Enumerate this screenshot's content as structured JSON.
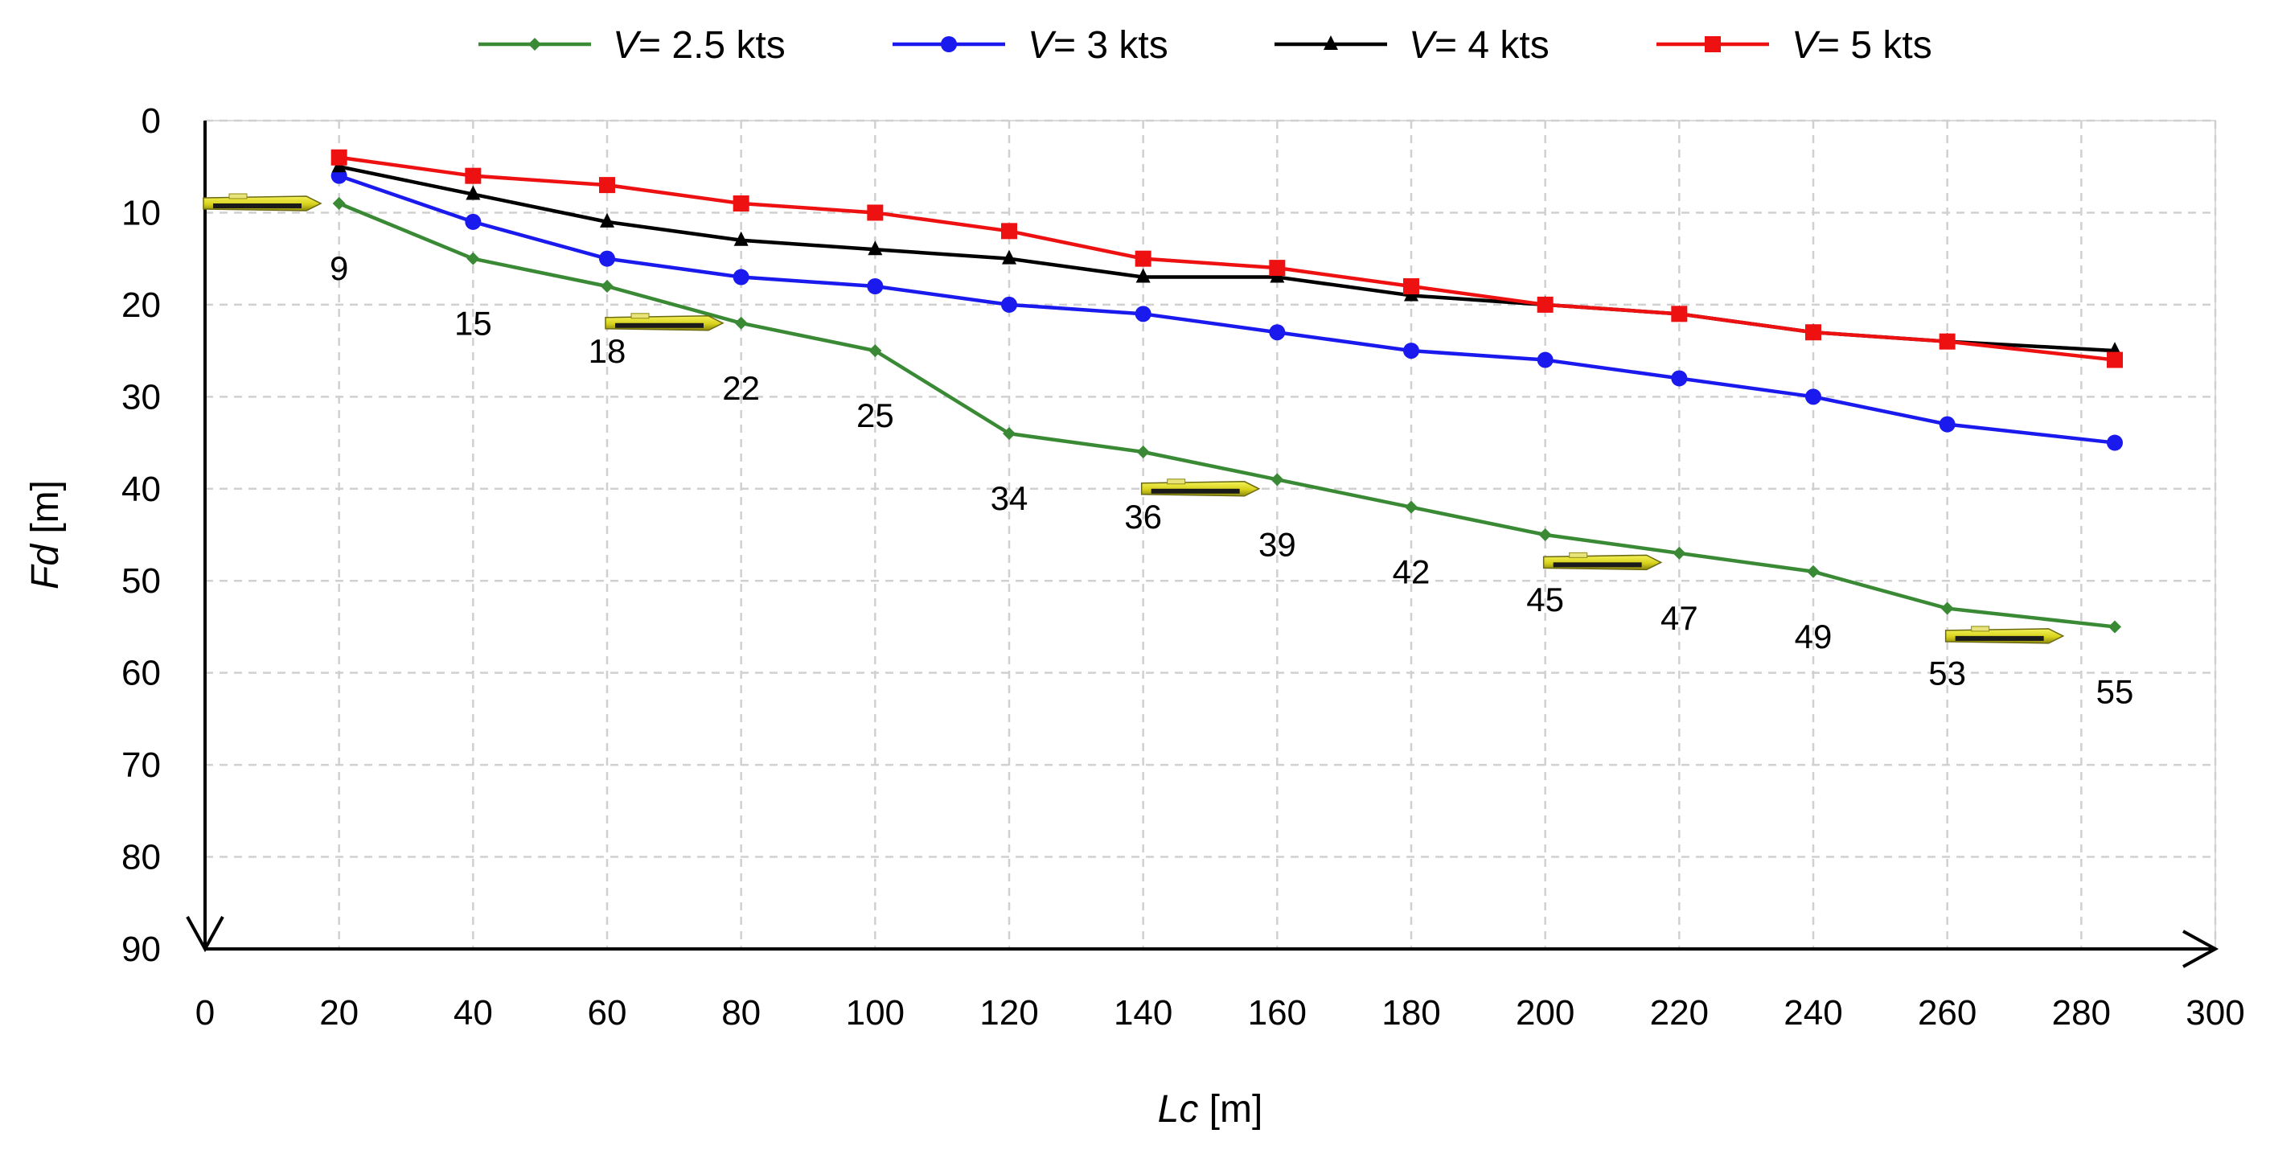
{
  "chart_data": {
    "type": "line",
    "title": "",
    "xlabel": {
      "var": "Lc",
      "unit": "[m]"
    },
    "ylabel": {
      "var": "Fd",
      "unit": "[m]"
    },
    "xlim": [
      0,
      300
    ],
    "ylim": [
      0,
      90
    ],
    "y_inverted": true,
    "grid": true,
    "legend_position": "top",
    "xticks": [
      0,
      20,
      40,
      60,
      80,
      100,
      120,
      140,
      160,
      180,
      200,
      220,
      240,
      260,
      280,
      300
    ],
    "yticks": [
      0,
      10,
      20,
      30,
      40,
      50,
      60,
      70,
      80,
      90
    ],
    "x": [
      20,
      40,
      60,
      80,
      100,
      120,
      140,
      160,
      180,
      200,
      220,
      240,
      260,
      285
    ],
    "series": [
      {
        "name": "V= 2.5 kts",
        "legend_var": "V",
        "legend_rest": "= 2.5 kts",
        "color": "#3a8a35",
        "marker": "diamond",
        "values": [
          9,
          15,
          18,
          22,
          25,
          34,
          36,
          39,
          42,
          45,
          47,
          49,
          53,
          55
        ]
      },
      {
        "name": "V= 3 kts",
        "legend_var": "V",
        "legend_rest": "= 3 kts",
        "color": "#1a1aee",
        "marker": "circle",
        "values": [
          6,
          11,
          15,
          17,
          18,
          20,
          21,
          23,
          25,
          26,
          28,
          30,
          33,
          35
        ]
      },
      {
        "name": "V= 4 kts",
        "legend_var": "V",
        "legend_rest": "= 4 kts",
        "color": "#000000",
        "marker": "triangle",
        "values": [
          5,
          8,
          11,
          13,
          14,
          15,
          17,
          17,
          19,
          20,
          21,
          23,
          24,
          25
        ]
      },
      {
        "name": "V= 5 kts",
        "legend_var": "V",
        "legend_rest": "= 5 kts",
        "color": "#ee1111",
        "marker": "square",
        "values": [
          4,
          6,
          7,
          9,
          10,
          12,
          15,
          16,
          18,
          20,
          21,
          23,
          24,
          26
        ]
      }
    ],
    "data_labels": {
      "series": "V= 2.5 kts",
      "values": [
        "9",
        "15",
        "18",
        "22",
        "25",
        "34",
        "36",
        "39",
        "42",
        "45",
        "47",
        "49",
        "53",
        "55"
      ]
    },
    "annotations": {
      "type": "ship-icon",
      "description": "yellow vessel markers along the 2.5 kts track",
      "at": [
        {
          "x": 0,
          "y": 9
        },
        {
          "x": 60,
          "y": 22
        },
        {
          "x": 140,
          "y": 40
        },
        {
          "x": 200,
          "y": 48
        },
        {
          "x": 260,
          "y": 56
        }
      ]
    }
  }
}
